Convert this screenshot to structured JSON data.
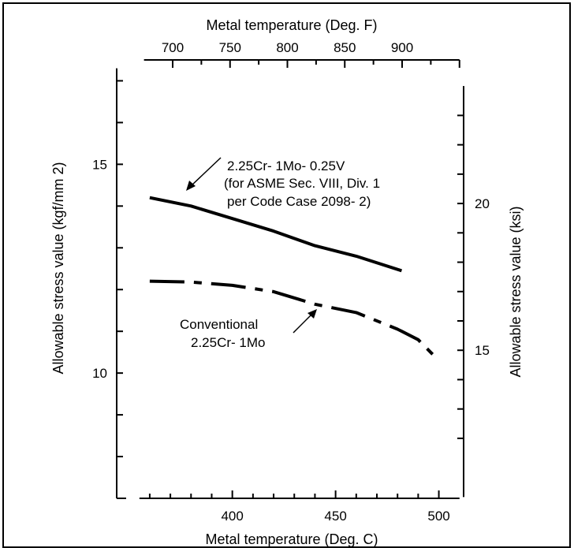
{
  "chart_data": {
    "type": "line",
    "title": "",
    "xlabel": "Metal temperature (Deg. C)",
    "x2label": "Metal temperature (Deg. F)",
    "ylabel": "Allowable stress value (kgf/mm 2)",
    "y2label": "Allowable stress value (ksi)",
    "xlim": [
      344,
      512
    ],
    "ylim": [
      7,
      17.5
    ],
    "x_ticks": [
      "400",
      "450",
      "500"
    ],
    "x2_ticks": [
      "700",
      "750",
      "800",
      "850",
      "900"
    ],
    "y_ticks": [
      "10",
      "15"
    ],
    "y2_ticks": [
      "15",
      "20"
    ],
    "grid": false,
    "legend": "none",
    "series": [
      {
        "name": "2.25Cr-1Mo-0.25V",
        "style": "solid",
        "color": "#000000",
        "x": [
          360,
          380,
          400,
          420,
          440,
          460,
          482
        ],
        "y": [
          14.2,
          14.0,
          13.7,
          13.4,
          13.05,
          12.8,
          12.45
        ]
      },
      {
        "name": "Conventional 2.25Cr-1Mo",
        "style": "dashed",
        "color": "#000000",
        "x": [
          360,
          380,
          400,
          420,
          440,
          460,
          480,
          490,
          498
        ],
        "y": [
          12.2,
          12.18,
          12.1,
          11.95,
          11.65,
          11.45,
          11.05,
          10.8,
          10.4
        ]
      }
    ],
    "annotations": [
      {
        "lines": [
          "2.25Cr- 1Mo- 0.25V",
          "(for ASME Sec. VIII, Div. 1",
          " per Code Case 2098- 2)"
        ]
      },
      {
        "lines": [
          "Conventional",
          "2.25Cr- 1Mo"
        ]
      }
    ]
  }
}
